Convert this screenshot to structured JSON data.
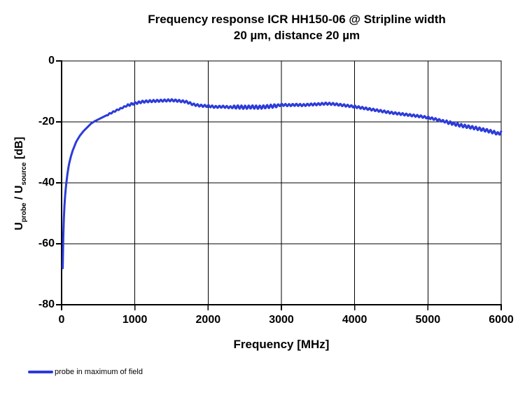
{
  "figure": {
    "background": "#ffffff",
    "text_color": "#000000"
  },
  "chart_data": {
    "type": "line",
    "title": "Frequency response ICR HH150-06 @ Stripline width 20 µm, distance 20 µm",
    "title_lines": [
      "Frequency response ICR HH150-06 @ Stripline  width",
      "20 µm, distance 20 µm"
    ],
    "xlabel": "Frequency [MHz]",
    "ylabel": "U_probe / U_source [dB]",
    "ylabel_parts": {
      "sym1": "U",
      "sub1": "probe",
      "sep": " / ",
      "sym2": "U",
      "sub2": "source",
      "unit": " [dB]"
    },
    "xlim": [
      0,
      6000
    ],
    "ylim": [
      -80,
      0
    ],
    "x_ticks": [
      "0",
      "1000",
      "2000",
      "3000",
      "4000",
      "5000",
      "6000"
    ],
    "y_ticks": [
      "0",
      "-20",
      "-40",
      "-60",
      "-80"
    ],
    "grid": true,
    "legend_position": "bottom-left",
    "axis_color": "#000000",
    "series": [
      {
        "name": "probe in maximum of field",
        "color": "#2c3bd9",
        "line_width": 3,
        "points": [
          [
            15,
            -68
          ],
          [
            20,
            -60
          ],
          [
            30,
            -52
          ],
          [
            40,
            -47
          ],
          [
            50,
            -43.5
          ],
          [
            65,
            -40
          ],
          [
            80,
            -37
          ],
          [
            100,
            -34
          ],
          [
            125,
            -31.5
          ],
          [
            150,
            -29.5
          ],
          [
            175,
            -28
          ],
          [
            200,
            -26.5
          ],
          [
            250,
            -24.5
          ],
          [
            300,
            -23
          ],
          [
            350,
            -21.8
          ],
          [
            400,
            -20.6
          ],
          [
            450,
            -19.8
          ],
          [
            500,
            -19.2
          ],
          [
            550,
            -18.6
          ],
          [
            600,
            -18
          ],
          [
            650,
            -17.4
          ],
          [
            700,
            -16.8
          ],
          [
            750,
            -16.2
          ],
          [
            800,
            -15.7
          ],
          [
            850,
            -15.1
          ],
          [
            900,
            -14.6
          ],
          [
            950,
            -14.2
          ],
          [
            1000,
            -13.9
          ],
          [
            1100,
            -13.4
          ],
          [
            1200,
            -13.2
          ],
          [
            1300,
            -13.1
          ],
          [
            1400,
            -13.0
          ],
          [
            1500,
            -12.9
          ],
          [
            1600,
            -13.1
          ],
          [
            1700,
            -13.4
          ],
          [
            1800,
            -14.3
          ],
          [
            1900,
            -14.7
          ],
          [
            2000,
            -14.8
          ],
          [
            2100,
            -15.1
          ],
          [
            2200,
            -15.0
          ],
          [
            2300,
            -15.2
          ],
          [
            2400,
            -15.1
          ],
          [
            2500,
            -15.2
          ],
          [
            2600,
            -15.1
          ],
          [
            2700,
            -15.2
          ],
          [
            2800,
            -15.0
          ],
          [
            2900,
            -14.8
          ],
          [
            3000,
            -14.4
          ],
          [
            3100,
            -14.5
          ],
          [
            3200,
            -14.4
          ],
          [
            3300,
            -14.5
          ],
          [
            3400,
            -14.3
          ],
          [
            3500,
            -14.2
          ],
          [
            3600,
            -14.0
          ],
          [
            3700,
            -14.1
          ],
          [
            3800,
            -14.4
          ],
          [
            3900,
            -14.7
          ],
          [
            4000,
            -15.0
          ],
          [
            4100,
            -15.4
          ],
          [
            4200,
            -15.8
          ],
          [
            4300,
            -16.2
          ],
          [
            4400,
            -16.6
          ],
          [
            4500,
            -17.0
          ],
          [
            4600,
            -17.3
          ],
          [
            4700,
            -17.6
          ],
          [
            4800,
            -17.9
          ],
          [
            4900,
            -18.2
          ],
          [
            5000,
            -18.6
          ],
          [
            5100,
            -19.1
          ],
          [
            5200,
            -19.7
          ],
          [
            5300,
            -20.3
          ],
          [
            5400,
            -20.9
          ],
          [
            5500,
            -21.4
          ],
          [
            5600,
            -21.8
          ],
          [
            5700,
            -22.3
          ],
          [
            5800,
            -22.8
          ],
          [
            5900,
            -23.4
          ],
          [
            5960,
            -23.9
          ],
          [
            6000,
            -23.5
          ]
        ],
        "ripple": {
          "period_mhz": 50,
          "phase": 1.0,
          "segments": [
            {
              "from": 0,
              "to": 620,
              "amp": 0
            },
            {
              "from": 620,
              "to": 900,
              "amp": 0.2
            },
            {
              "from": 900,
              "to": 2350,
              "amp": 0.35
            },
            {
              "from": 2350,
              "to": 2950,
              "amp": 0.55
            },
            {
              "from": 2950,
              "to": 5250,
              "amp": 0.35
            },
            {
              "from": 5250,
              "to": 6000,
              "amp": 0.5
            }
          ]
        }
      }
    ]
  },
  "legend": {
    "label": "probe in maximum of field"
  }
}
